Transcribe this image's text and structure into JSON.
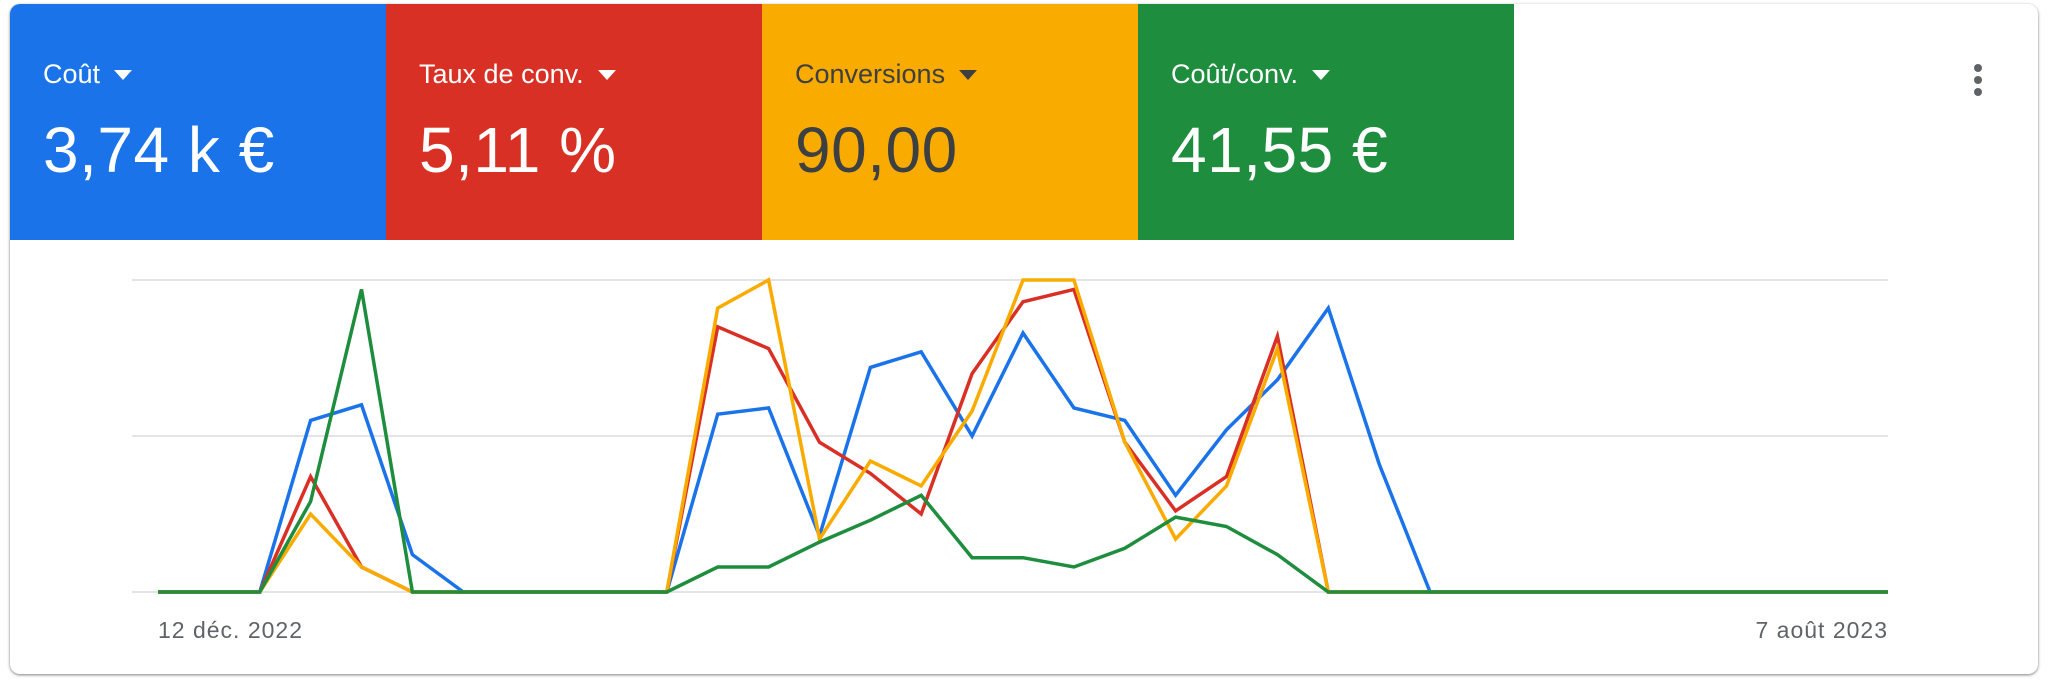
{
  "tiles": [
    {
      "label": "Coût",
      "value": "3,74 k €",
      "color": "#1a73e8",
      "text_color": "#ffffff",
      "icon": "arrow-drop-down-icon"
    },
    {
      "label": "Taux de conv.",
      "value": "5,11 %",
      "color": "#d93025",
      "text_color": "#ffffff",
      "icon": "arrow-drop-down-icon"
    },
    {
      "label": "Conversions",
      "value": "90,00",
      "color": "#f9ab00",
      "text_color": "#3c4043",
      "icon": "arrow-drop-down-icon"
    },
    {
      "label": "Coût/conv.",
      "value": "41,55 €",
      "color": "#1e8e3e",
      "text_color": "#ffffff",
      "icon": "arrow-drop-down-icon"
    }
  ],
  "menu": {
    "icon": "more-vert-icon"
  },
  "chart_data": {
    "type": "line",
    "x_start_label": "12 déc. 2022",
    "x_end_label": "7 août 2023",
    "grid": true,
    "gridlines": 3,
    "series": [
      {
        "name": "Coût",
        "color": "#1a73e8",
        "values": [
          0,
          0,
          0,
          55,
          60,
          12,
          0,
          0,
          0,
          0,
          0,
          57,
          59,
          18,
          72,
          77,
          50,
          83,
          59,
          55,
          31,
          52,
          68,
          91,
          41,
          0,
          0,
          0,
          0,
          0,
          0,
          0,
          0,
          0,
          0
        ]
      },
      {
        "name": "Taux de conv.",
        "color": "#d93025",
        "values": [
          0,
          0,
          0,
          37,
          8,
          0,
          0,
          0,
          0,
          0,
          0,
          85,
          78,
          48,
          38,
          25,
          70,
          93,
          97,
          48,
          26,
          37,
          82,
          0,
          0,
          0,
          0,
          0,
          0,
          0,
          0,
          0,
          0,
          0,
          0
        ]
      },
      {
        "name": "Conversions",
        "color": "#f9ab00",
        "values": [
          0,
          0,
          0,
          25,
          8,
          0,
          0,
          0,
          0,
          0,
          0,
          91,
          100,
          17,
          42,
          34,
          58,
          100,
          100,
          48,
          17,
          34,
          78,
          0,
          0,
          0,
          0,
          0,
          0,
          0,
          0,
          0,
          0,
          0,
          0
        ]
      },
      {
        "name": "Coût/conv.",
        "color": "#1e8e3e",
        "values": [
          0,
          0,
          0,
          29,
          97,
          0,
          0,
          0,
          0,
          0,
          0,
          8,
          8,
          16,
          23,
          31,
          11,
          11,
          8,
          14,
          24,
          21,
          12,
          0,
          0,
          0,
          0,
          0,
          0,
          0,
          0,
          0,
          0,
          0,
          0
        ]
      }
    ]
  }
}
